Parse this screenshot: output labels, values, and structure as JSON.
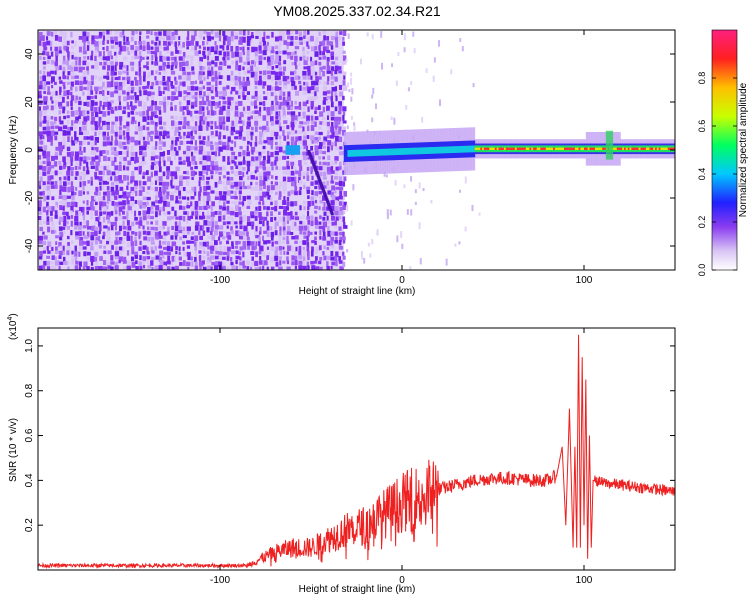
{
  "title": "YM08.2025.337.02.34.R21",
  "chart_data": [
    {
      "type": "heatmap",
      "panel": "spectrogram",
      "xlabel": "Height of straight line (km)",
      "ylabel": "Frequency (Hz)",
      "xlim": [
        -200,
        150
      ],
      "ylim": [
        -50,
        50
      ],
      "xticks": [
        -100,
        0,
        100
      ],
      "yticks": [
        -40,
        -20,
        0,
        20,
        40
      ],
      "colorbar": {
        "label": "Normalized spectral amplitude",
        "range": [
          0,
          1
        ],
        "ticks": [
          "0.0",
          "0.2",
          "0.4",
          "0.6",
          "0.8"
        ],
        "stops": [
          "#ffffff",
          "#d8c4f4",
          "#8a3cf0",
          "#2020ff",
          "#00c8ff",
          "#00ff60",
          "#c8ff00",
          "#ffc000",
          "#ff2020",
          "#ff2080"
        ]
      },
      "regions": [
        {
          "name": "noise",
          "x": [
            -200,
            -32
          ],
          "freq": [
            -50,
            50
          ],
          "amplitude": 0.06
        },
        {
          "name": "carrier-onset",
          "x": [
            -32,
            40
          ],
          "freq_center": -1.5,
          "amplitude": 0.5
        },
        {
          "name": "carrier",
          "x": [
            40,
            150
          ],
          "freq_center": 0.5,
          "amplitude": 0.95
        }
      ]
    },
    {
      "type": "line",
      "panel": "snr",
      "xlabel": "Height of straight line (km)",
      "ylabel": "SNR (10 * v/v)",
      "y_multiplier": "(x10",
      "y_multiplier_exp": "4",
      "y_multiplier_close": ")",
      "xlim": [
        -200,
        150
      ],
      "ylim": [
        0,
        1.08
      ],
      "xticks": [
        -100,
        0,
        100
      ],
      "yticks": [
        "0.2",
        "0.4",
        "0.6",
        "0.8",
        "1.0"
      ],
      "series": [
        {
          "name": "SNR",
          "color": "#ee2020",
          "x": [
            -200,
            -150,
            -100,
            -85,
            -80,
            -70,
            -60,
            -50,
            -40,
            -30,
            -20,
            -10,
            0,
            10,
            20,
            30,
            40,
            50,
            60,
            70,
            80,
            85,
            88,
            90,
            92,
            94,
            95,
            96,
            97,
            98,
            99,
            100,
            101,
            102,
            103,
            104,
            105,
            110,
            120,
            130,
            140,
            150
          ],
          "values": [
            0.02,
            0.02,
            0.02,
            0.02,
            0.04,
            0.08,
            0.1,
            0.1,
            0.14,
            0.18,
            0.2,
            0.25,
            0.3,
            0.33,
            0.36,
            0.38,
            0.4,
            0.41,
            0.41,
            0.4,
            0.4,
            0.42,
            0.55,
            0.2,
            0.72,
            0.1,
            0.55,
            0.1,
            1.05,
            0.1,
            0.95,
            0.2,
            0.85,
            0.05,
            0.6,
            0.1,
            0.4,
            0.39,
            0.38,
            0.37,
            0.36,
            0.35
          ]
        }
      ]
    }
  ]
}
